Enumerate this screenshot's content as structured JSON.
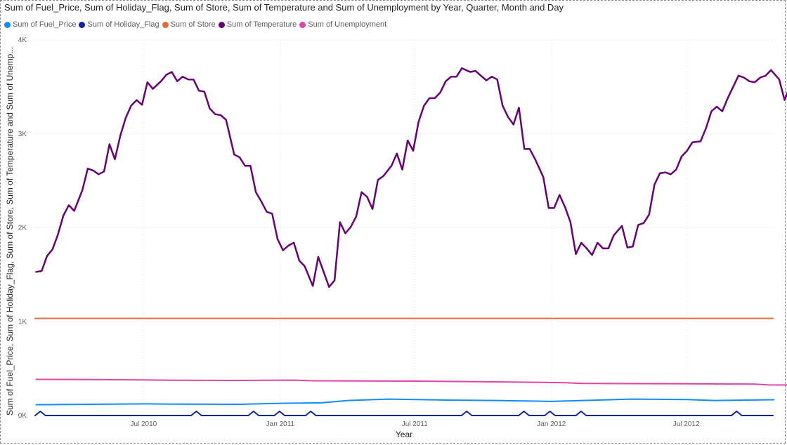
{
  "chart_data": {
    "type": "line",
    "title": "Sum of Fuel_Price, Sum of Holiday_Flag, Sum of Store, Sum of Temperature and Sum of Unemployment by Year, Quarter, Month and Day",
    "xlabel": "Year",
    "ylabel": "Sum of Fuel_Price, Sum of Holiday_Flag, Sum of Store, Sum of Temperature and Sum of Unemp...",
    "x_tick_labels": [
      "Jul 2010",
      "Jan 2011",
      "Jul 2011",
      "Jan 2012",
      "Jul 2012"
    ],
    "x_tick_dates": [
      "2010-07-01",
      "2011-01-01",
      "2011-07-01",
      "2012-01-01",
      "2012-07-01"
    ],
    "x_range": [
      "2010-02-05",
      "2012-10-26"
    ],
    "y_tick_labels": [
      "0K",
      "1K",
      "2K",
      "3K",
      "4K"
    ],
    "y_ticks": [
      0,
      1000,
      2000,
      3000,
      4000
    ],
    "ylim": [
      0,
      4000
    ],
    "grid": true,
    "legend_position": "top-left",
    "series": [
      {
        "name": "Sum of Fuel_Price",
        "color": "#118DFF",
        "values": [
          [
            2010.1,
            115
          ],
          [
            2010.3,
            120
          ],
          [
            2010.5,
            124
          ],
          [
            2010.6,
            122
          ],
          [
            2010.85,
            120
          ],
          [
            2011.0,
            130
          ],
          [
            2011.15,
            135
          ],
          [
            2011.25,
            160
          ],
          [
            2011.4,
            175
          ],
          [
            2011.6,
            165
          ],
          [
            2011.8,
            160
          ],
          [
            2012.0,
            150
          ],
          [
            2012.3,
            175
          ],
          [
            2012.5,
            170
          ],
          [
            2012.6,
            160
          ],
          [
            2012.82,
            168
          ]
        ]
      },
      {
        "name": "Sum of Holiday_Flag",
        "color": "#12239E",
        "values": [
          [
            "2010-02-05",
            0
          ],
          [
            "2010-02-12",
            45
          ],
          [
            "2010-02-19",
            0
          ],
          [
            "2010-09-03",
            0
          ],
          [
            "2010-09-10",
            45
          ],
          [
            "2010-09-17",
            0
          ],
          [
            "2010-11-19",
            0
          ],
          [
            "2010-11-26",
            45
          ],
          [
            "2010-12-03",
            0
          ],
          [
            "2010-12-24",
            0
          ],
          [
            "2010-12-31",
            45
          ],
          [
            "2011-01-07",
            0
          ],
          [
            "2011-02-04",
            0
          ],
          [
            "2011-02-11",
            45
          ],
          [
            "2011-02-18",
            0
          ],
          [
            "2011-09-02",
            0
          ],
          [
            "2011-09-09",
            45
          ],
          [
            "2011-09-16",
            0
          ],
          [
            "2011-11-18",
            0
          ],
          [
            "2011-11-25",
            45
          ],
          [
            "2011-12-02",
            0
          ],
          [
            "2011-12-23",
            0
          ],
          [
            "2011-12-30",
            45
          ],
          [
            "2012-01-06",
            0
          ],
          [
            "2012-02-03",
            0
          ],
          [
            "2012-02-10",
            45
          ],
          [
            "2012-02-17",
            0
          ],
          [
            "2012-08-31",
            0
          ],
          [
            "2012-09-07",
            45
          ],
          [
            "2012-09-14",
            0
          ],
          [
            "2012-10-26",
            0
          ]
        ]
      },
      {
        "name": "Sum of Store",
        "color": "#E66C37",
        "values": [
          [
            "2010-02-05",
            1035
          ],
          [
            "2012-10-26",
            1035
          ]
        ]
      },
      {
        "name": "Sum of Temperature",
        "color": "#6B007B",
        "values": [
          [
            2010.1,
            1530
          ],
          [
            2010.12,
            1540
          ],
          [
            2010.14,
            1700
          ],
          [
            2010.16,
            1770
          ],
          [
            2010.18,
            1930
          ],
          [
            2010.2,
            2130
          ],
          [
            2010.22,
            2240
          ],
          [
            2010.24,
            2180
          ],
          [
            2010.27,
            2400
          ],
          [
            2010.29,
            2630
          ],
          [
            2010.31,
            2610
          ],
          [
            2010.33,
            2570
          ],
          [
            2010.35,
            2600
          ],
          [
            2010.37,
            2890
          ],
          [
            2010.39,
            2730
          ],
          [
            2010.41,
            2980
          ],
          [
            2010.43,
            3170
          ],
          [
            2010.45,
            3300
          ],
          [
            2010.47,
            3360
          ],
          [
            2010.49,
            3310
          ],
          [
            2010.51,
            3550
          ],
          [
            2010.53,
            3480
          ],
          [
            2010.56,
            3560
          ],
          [
            2010.58,
            3630
          ],
          [
            2010.6,
            3660
          ],
          [
            2010.62,
            3560
          ],
          [
            2010.64,
            3610
          ],
          [
            2010.66,
            3580
          ],
          [
            2010.68,
            3580
          ],
          [
            2010.7,
            3460
          ],
          [
            2010.72,
            3450
          ],
          [
            2010.74,
            3270
          ],
          [
            2010.76,
            3210
          ],
          [
            2010.78,
            3200
          ],
          [
            2010.8,
            3150
          ],
          [
            2010.83,
            2780
          ],
          [
            2010.85,
            2750
          ],
          [
            2010.87,
            2660
          ],
          [
            2010.89,
            2660
          ],
          [
            2010.91,
            2380
          ],
          [
            2010.93,
            2280
          ],
          [
            2010.95,
            2170
          ],
          [
            2010.97,
            2150
          ],
          [
            2010.99,
            1880
          ],
          [
            2011.01,
            1760
          ],
          [
            2011.03,
            1810
          ],
          [
            2011.05,
            1840
          ],
          [
            2011.07,
            1650
          ],
          [
            2011.09,
            1590
          ],
          [
            2011.12,
            1380
          ],
          [
            2011.14,
            1690
          ],
          [
            2011.16,
            1530
          ],
          [
            2011.18,
            1370
          ],
          [
            2011.2,
            1440
          ],
          [
            2011.22,
            2060
          ],
          [
            2011.24,
            1940
          ],
          [
            2011.26,
            2010
          ],
          [
            2011.28,
            2120
          ],
          [
            2011.3,
            2380
          ],
          [
            2011.32,
            2330
          ],
          [
            2011.34,
            2200
          ],
          [
            2011.36,
            2510
          ],
          [
            2011.38,
            2550
          ],
          [
            2011.41,
            2660
          ],
          [
            2011.43,
            2790
          ],
          [
            2011.45,
            2620
          ],
          [
            2011.47,
            2930
          ],
          [
            2011.49,
            2820
          ],
          [
            2011.51,
            3130
          ],
          [
            2011.53,
            3300
          ],
          [
            2011.55,
            3380
          ],
          [
            2011.57,
            3380
          ],
          [
            2011.59,
            3440
          ],
          [
            2011.61,
            3560
          ],
          [
            2011.63,
            3610
          ],
          [
            2011.65,
            3610
          ],
          [
            2011.67,
            3700
          ],
          [
            2011.7,
            3660
          ],
          [
            2011.72,
            3670
          ],
          [
            2011.74,
            3620
          ],
          [
            2011.76,
            3570
          ],
          [
            2011.78,
            3610
          ],
          [
            2011.8,
            3580
          ],
          [
            2011.82,
            3300
          ],
          [
            2011.84,
            3180
          ],
          [
            2011.86,
            3100
          ],
          [
            2011.88,
            3280
          ],
          [
            2011.9,
            2840
          ],
          [
            2011.92,
            2840
          ],
          [
            2011.94,
            2730
          ],
          [
            2011.97,
            2540
          ],
          [
            2011.99,
            2210
          ],
          [
            2012.01,
            2210
          ],
          [
            2012.03,
            2350
          ],
          [
            2012.05,
            2220
          ],
          [
            2012.07,
            2060
          ],
          [
            2012.09,
            1720
          ],
          [
            2012.11,
            1840
          ],
          [
            2012.13,
            1780
          ],
          [
            2012.15,
            1710
          ],
          [
            2012.17,
            1840
          ],
          [
            2012.19,
            1780
          ],
          [
            2012.21,
            1780
          ],
          [
            2012.23,
            1920
          ],
          [
            2012.26,
            2020
          ],
          [
            2012.28,
            1790
          ],
          [
            2012.3,
            1800
          ],
          [
            2012.32,
            2030
          ],
          [
            2012.34,
            2050
          ],
          [
            2012.36,
            2140
          ],
          [
            2012.38,
            2460
          ],
          [
            2012.4,
            2580
          ],
          [
            2012.42,
            2590
          ],
          [
            2012.44,
            2570
          ],
          [
            2012.46,
            2620
          ],
          [
            2012.48,
            2760
          ],
          [
            2012.5,
            2820
          ],
          [
            2012.52,
            2910
          ],
          [
            2012.55,
            2920
          ],
          [
            2012.57,
            3060
          ],
          [
            2012.59,
            3240
          ],
          [
            2012.61,
            3290
          ],
          [
            2012.63,
            3240
          ],
          [
            2012.65,
            3380
          ],
          [
            2012.67,
            3500
          ],
          [
            2012.69,
            3620
          ],
          [
            2012.71,
            3600
          ],
          [
            2012.73,
            3560
          ],
          [
            2012.75,
            3550
          ],
          [
            2012.77,
            3600
          ],
          [
            2012.79,
            3620
          ],
          [
            2012.81,
            3680
          ],
          [
            2012.84,
            3580
          ],
          [
            2012.86,
            3360
          ],
          [
            2012.88,
            3510
          ],
          [
            2012.9,
            3520
          ],
          [
            2012.92,
            3170
          ],
          [
            2012.94,
            3070
          ],
          [
            2012.96,
            3100
          ],
          [
            2012.98,
            2980
          ],
          [
            2013.0,
            2630
          ],
          [
            2013.02,
            2730
          ],
          [
            2013.04,
            2750
          ]
        ]
      },
      {
        "name": "Sum of Unemployment",
        "color": "#E044A7",
        "values": [
          [
            2010.1,
            385
          ],
          [
            2010.3,
            383
          ],
          [
            2010.5,
            380
          ],
          [
            2010.6,
            376
          ],
          [
            2010.85,
            374
          ],
          [
            2011.05,
            377
          ],
          [
            2011.12,
            370
          ],
          [
            2011.3,
            368
          ],
          [
            2011.5,
            366
          ],
          [
            2011.88,
            356
          ],
          [
            2012.05,
            350
          ],
          [
            2012.11,
            342
          ],
          [
            2012.5,
            338
          ],
          [
            2012.75,
            335
          ],
          [
            2012.8,
            326
          ],
          [
            2012.95,
            325
          ],
          [
            2013.0,
            310
          ],
          [
            2013.04,
            310
          ]
        ]
      }
    ]
  }
}
